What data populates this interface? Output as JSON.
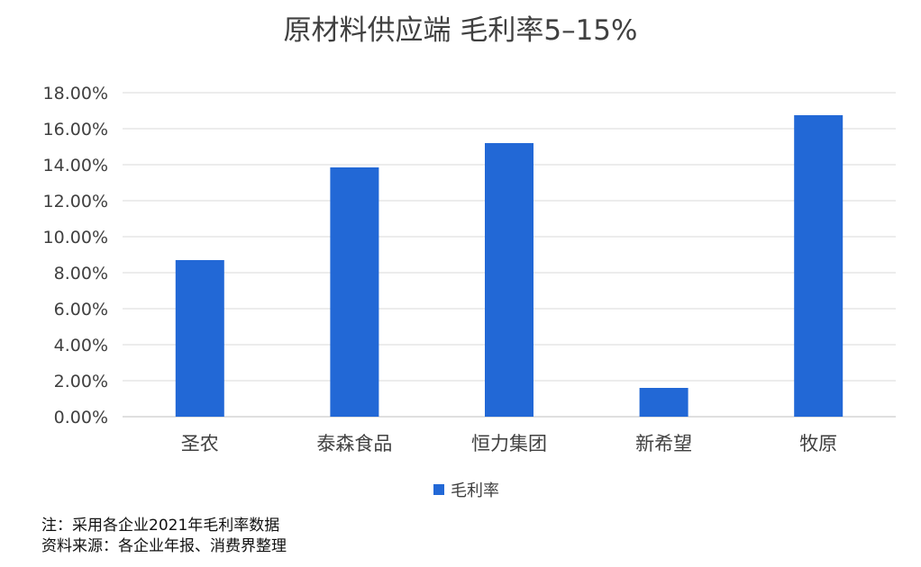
{
  "chart_data": {
    "type": "bar",
    "title": "原材料供应端 毛利率5–15%",
    "categories": [
      "圣农",
      "泰森食品",
      "恒力集团",
      "新希望",
      "牧原"
    ],
    "series": [
      {
        "name": "毛利率",
        "values": [
          8.7,
          13.85,
          15.2,
          1.6,
          16.75
        ],
        "color": "#2268D6"
      }
    ],
    "ylim": [
      0,
      18
    ],
    "ytick_step": 2,
    "ytick_labels": [
      "0.00%",
      "2.00%",
      "4.00%",
      "6.00%",
      "8.00%",
      "10.00%",
      "12.00%",
      "14.00%",
      "16.00%",
      "18.00%"
    ],
    "grid": true,
    "legend_position": "bottom"
  },
  "notes": {
    "line1": "注：采用各企业2021年毛利率数据",
    "line2": "资料来源：各企业年报、消费界整理"
  }
}
